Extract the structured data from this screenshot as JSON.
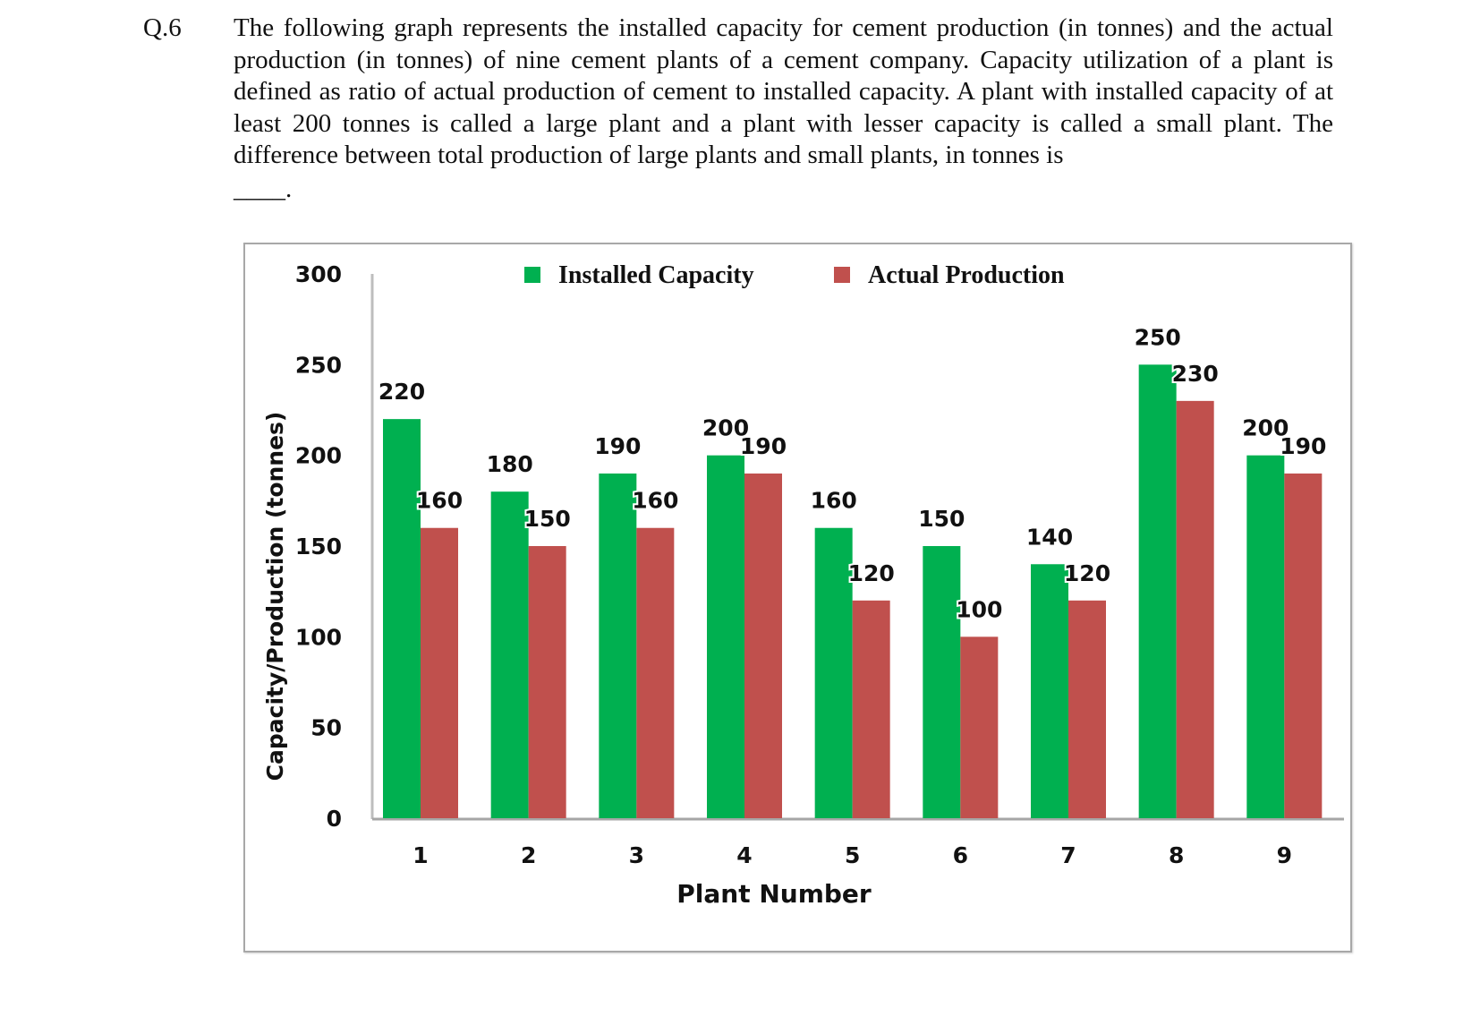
{
  "question": {
    "number": "Q.6",
    "text": "The following graph represents the installed capacity for cement production (in tonnes) and the actual production (in tonnes) of nine cement plants of a cement company. Capacity utilization of a plant is defined as ratio of actual production of cement to installed capacity. A plant with installed capacity of at least 200 tonnes is called a large plant and a plant with lesser capacity is called a small plant. The difference between total production of large plants and small plants, in tonnes is",
    "blank": "____."
  },
  "chart_data": {
    "type": "bar",
    "categories": [
      "1",
      "2",
      "3",
      "4",
      "5",
      "6",
      "7",
      "8",
      "9"
    ],
    "series": [
      {
        "name": "Installed Capacity",
        "color": "#00b050",
        "values": [
          220,
          180,
          190,
          200,
          160,
          150,
          140,
          250,
          200
        ]
      },
      {
        "name": "Actual Production",
        "color": "#c0504d",
        "values": [
          160,
          150,
          160,
          190,
          120,
          100,
          120,
          230,
          190
        ]
      }
    ],
    "title": "",
    "xlabel": "Plant Number",
    "ylabel": "Capacity/Production (tonnes)",
    "ylim": [
      0,
      300
    ],
    "yticks": [
      0,
      50,
      100,
      150,
      200,
      250,
      300
    ],
    "grid": false,
    "legend": "top-center",
    "data_labels": true
  }
}
